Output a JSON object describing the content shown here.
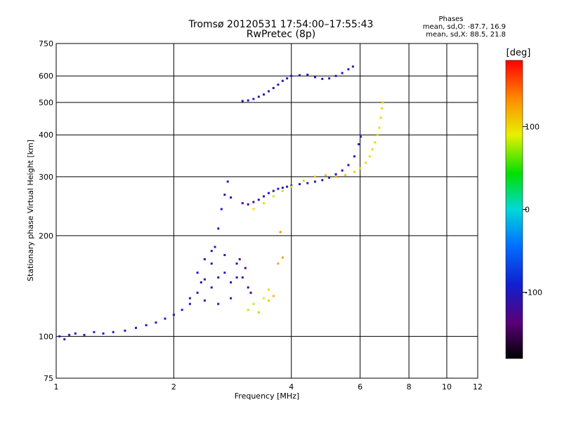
{
  "title_line1": "Tromsø 20120531 17:54:00–17:55:43",
  "title_line2": "RwPretec (8p)",
  "phases": {
    "heading": "Phases",
    "line1": "mean, sd,O: -87.7, 16.9",
    "line2": "mean, sd,X: 88.5, 21.8"
  },
  "colorbar": {
    "unit": "[deg]",
    "ticks": [
      {
        "value": 100,
        "label": "100"
      },
      {
        "value": 0,
        "label": "0"
      },
      {
        "value": -100,
        "label": "-100"
      }
    ],
    "range": [
      -180,
      180
    ]
  },
  "chart_data": {
    "type": "scatter",
    "title": "Tromsø 20120531 17:54:00–17:55:43",
    "subtitle": "RwPretec (8p)",
    "xlabel": "Frequency [MHz]",
    "ylabel": "Stationary phase Virtual Height [km]",
    "x_scale": "log",
    "y_scale": "log",
    "xlim": [
      1,
      12
    ],
    "ylim": [
      75,
      750
    ],
    "x_ticks": [
      1,
      2,
      4,
      6,
      8,
      10,
      12
    ],
    "x_tick_labels": [
      "1",
      "2",
      "4",
      "6",
      "8",
      "10",
      "12"
    ],
    "y_ticks": [
      75,
      100,
      200,
      300,
      400,
      500,
      600,
      750
    ],
    "y_tick_labels": [
      "75",
      "100",
      "200",
      "300",
      "400",
      "500",
      "600",
      "750"
    ],
    "grid": true,
    "color_axis": "phase [deg]",
    "series": [
      {
        "points": [
          [
            1.02,
            100,
            -95
          ],
          [
            1.05,
            98,
            -100
          ],
          [
            1.08,
            101,
            -90
          ],
          [
            1.12,
            102,
            -105
          ],
          [
            1.18,
            101,
            -98
          ],
          [
            1.25,
            103,
            -102
          ],
          [
            1.32,
            102,
            -96
          ],
          [
            1.4,
            103,
            -100
          ],
          [
            1.5,
            104,
            -104
          ],
          [
            1.6,
            106,
            -99
          ],
          [
            1.7,
            108,
            -101
          ],
          [
            1.8,
            110,
            -103
          ],
          [
            1.9,
            113,
            -97
          ],
          [
            2.0,
            116,
            -100
          ],
          [
            2.1,
            120,
            -98
          ],
          [
            2.2,
            125,
            -102
          ],
          [
            2.3,
            135,
            -95
          ],
          [
            2.4,
            148,
            -100
          ],
          [
            2.5,
            165,
            -105
          ],
          [
            2.55,
            185,
            -98
          ],
          [
            2.6,
            210,
            -100
          ],
          [
            2.65,
            240,
            -96
          ],
          [
            2.7,
            265,
            -102
          ],
          [
            2.75,
            290,
            -100
          ],
          [
            2.8,
            260,
            -104
          ],
          [
            2.5,
            140,
            -99
          ],
          [
            2.6,
            150,
            -101
          ],
          [
            2.7,
            155,
            -97
          ],
          [
            2.8,
            145,
            -103
          ],
          [
            2.9,
            150,
            -100
          ],
          [
            2.4,
            170,
            -98
          ],
          [
            2.3,
            155,
            -102
          ],
          [
            2.5,
            180,
            -100
          ],
          [
            2.7,
            175,
            -95
          ],
          [
            2.9,
            165,
            -105
          ],
          [
            2.2,
            130,
            -100
          ],
          [
            2.4,
            128,
            -98
          ],
          [
            2.6,
            125,
            -102
          ],
          [
            2.8,
            130,
            -100
          ],
          [
            2.35,
            145,
            -97
          ],
          [
            3.0,
            250,
            -120
          ],
          [
            3.1,
            248,
            -118
          ],
          [
            3.2,
            252,
            -115
          ],
          [
            3.3,
            256,
            -110
          ],
          [
            3.4,
            262,
            -108
          ],
          [
            3.5,
            268,
            -105
          ],
          [
            3.6,
            272,
            -104
          ],
          [
            3.7,
            276,
            -102
          ],
          [
            3.8,
            278,
            -100
          ],
          [
            3.9,
            280,
            -100
          ],
          [
            4.0,
            282,
            -100
          ],
          [
            4.2,
            285,
            -98
          ],
          [
            4.4,
            287,
            -100
          ],
          [
            4.6,
            290,
            -102
          ],
          [
            4.8,
            293,
            -99
          ],
          [
            5.0,
            298,
            -100
          ],
          [
            5.2,
            305,
            -98
          ],
          [
            5.4,
            313,
            -100
          ],
          [
            5.6,
            325,
            -102
          ],
          [
            5.8,
            345,
            -100
          ],
          [
            5.95,
            375,
            -98
          ],
          [
            6.02,
            395,
            -100
          ],
          [
            3.0,
            505,
            -100
          ],
          [
            3.1,
            507,
            -102
          ],
          [
            3.2,
            512,
            -98
          ],
          [
            3.3,
            520,
            -100
          ],
          [
            3.4,
            528,
            -101
          ],
          [
            3.5,
            540,
            -99
          ],
          [
            3.6,
            552,
            -100
          ],
          [
            3.7,
            565,
            -102
          ],
          [
            3.8,
            580,
            -100
          ],
          [
            3.9,
            590,
            -98
          ],
          [
            4.0,
            600,
            -100
          ],
          [
            4.2,
            603,
            -100
          ],
          [
            4.4,
            605,
            -101
          ],
          [
            4.6,
            595,
            -98
          ],
          [
            4.8,
            588,
            -100
          ],
          [
            5.0,
            590,
            -100
          ],
          [
            5.2,
            600,
            -102
          ],
          [
            5.4,
            612,
            -100
          ],
          [
            5.6,
            628,
            -98
          ],
          [
            5.75,
            640,
            -100
          ],
          [
            3.0,
            150,
            -130
          ],
          [
            3.05,
            160,
            -135
          ],
          [
            3.1,
            140,
            -125
          ],
          [
            3.15,
            135,
            -140
          ],
          [
            2.95,
            170,
            -128
          ]
        ]
      },
      {
        "points": [
          [
            3.2,
            240,
            95
          ],
          [
            3.4,
            250,
            100
          ],
          [
            3.6,
            262,
            98
          ],
          [
            3.8,
            272,
            102
          ],
          [
            4.0,
            280,
            100
          ],
          [
            4.3,
            292,
            105
          ],
          [
            4.6,
            300,
            110
          ],
          [
            4.9,
            303,
            115
          ],
          [
            5.2,
            300,
            120
          ],
          [
            5.5,
            303,
            110
          ],
          [
            5.8,
            310,
            105
          ],
          [
            6.0,
            318,
            100
          ],
          [
            6.2,
            330,
            98
          ],
          [
            6.35,
            345,
            95
          ],
          [
            6.45,
            362,
            100
          ],
          [
            6.55,
            380,
            102
          ],
          [
            6.65,
            400,
            100
          ],
          [
            6.72,
            420,
            98
          ],
          [
            6.78,
            450,
            100
          ],
          [
            6.82,
            480,
            100
          ],
          [
            6.86,
            500,
            102
          ],
          [
            3.1,
            120,
            80
          ],
          [
            3.2,
            125,
            85
          ],
          [
            3.4,
            130,
            95
          ],
          [
            3.5,
            138,
            100
          ],
          [
            3.6,
            132,
            110
          ],
          [
            3.3,
            118,
            75
          ],
          [
            3.7,
            165,
            120
          ],
          [
            3.8,
            172,
            125
          ],
          [
            3.75,
            205,
            130
          ],
          [
            3.5,
            128,
            105
          ]
        ]
      }
    ]
  }
}
